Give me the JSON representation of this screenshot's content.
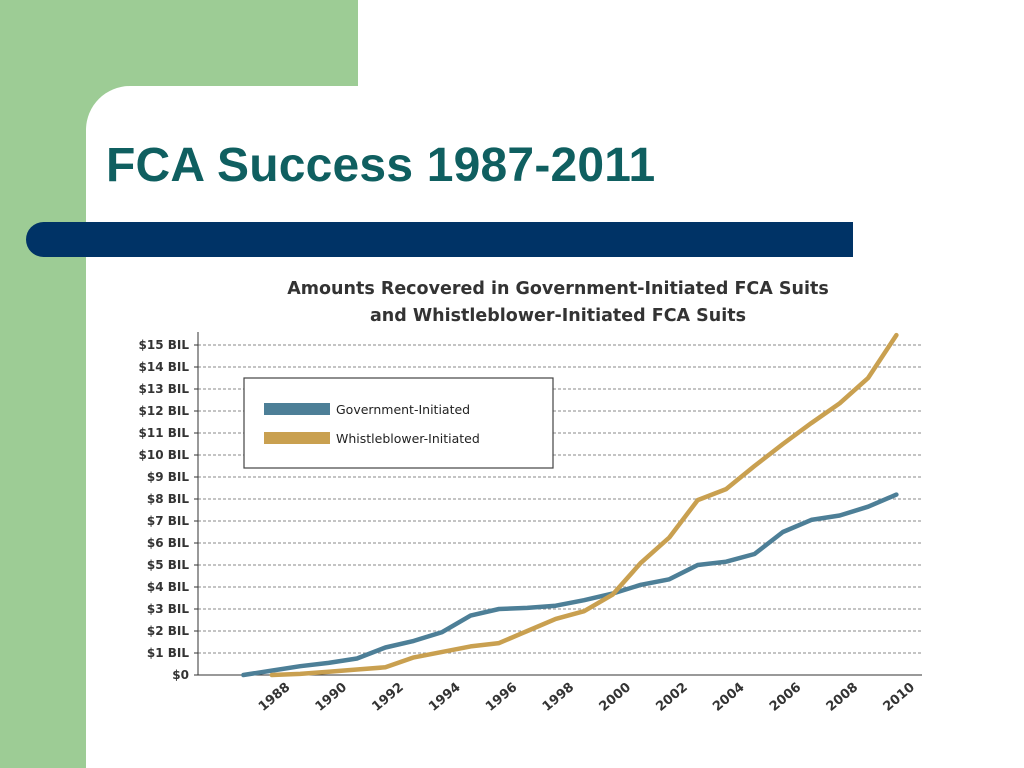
{
  "slide": {
    "title": "FCA Success 1987-2011",
    "colors": {
      "green_panel": "#9dcc95",
      "title_text": "#0f5f60",
      "title_bar": "#003366"
    }
  },
  "chart_data": {
    "type": "line",
    "title_line1": "Amounts Recovered in Government-Initiated FCA Suits",
    "title_line2": "and Whistleblower-Initiated FCA Suits",
    "x": [
      1987,
      1988,
      1989,
      1990,
      1991,
      1992,
      1993,
      1994,
      1995,
      1996,
      1997,
      1998,
      1999,
      2000,
      2001,
      2002,
      2003,
      2004,
      2005,
      2006,
      2007,
      2008,
      2009,
      2010
    ],
    "x_tick_labels": [
      "1988",
      "1990",
      "1992",
      "1994",
      "1996",
      "1998",
      "2000",
      "2002",
      "2004",
      "2006",
      "2008",
      "2010"
    ],
    "y_tick_labels": [
      "$0",
      "$1 BIL",
      "$2 BIL",
      "$3 BIL",
      "$4 BIL",
      "$5 BIL",
      "$6 BIL",
      "$7 BIL",
      "$8 BIL",
      "$9 BIL",
      "$10 BIL",
      "$11 BIL",
      "$12 BIL",
      "$13 BIL",
      "$14 BIL",
      "$15 BIL"
    ],
    "ylim": [
      0,
      15
    ],
    "xlim": [
      1985.4,
      2010.9
    ],
    "grid": "horizontal-dashed",
    "legend_position": "top-left",
    "series": [
      {
        "name": "Government-Initiated",
        "color": "#4d7f97",
        "values": [
          0,
          0.2,
          0.4,
          0.55,
          0.75,
          1.25,
          1.55,
          1.95,
          2.7,
          3.0,
          3.05,
          3.15,
          3.4,
          3.7,
          4.1,
          4.35,
          5.0,
          5.15,
          5.5,
          6.5,
          7.05,
          7.25,
          7.65,
          8.2
        ]
      },
      {
        "name": "Whistleblower-Initiated",
        "color": "#c9a050",
        "values": [
          null,
          0,
          0.05,
          0.15,
          0.25,
          0.35,
          0.8,
          1.05,
          1.3,
          1.45,
          2.0,
          2.55,
          2.9,
          3.65,
          5.1,
          6.25,
          7.95,
          8.45,
          9.5,
          10.5,
          11.45,
          12.35,
          13.5,
          15.45
        ]
      }
    ]
  }
}
